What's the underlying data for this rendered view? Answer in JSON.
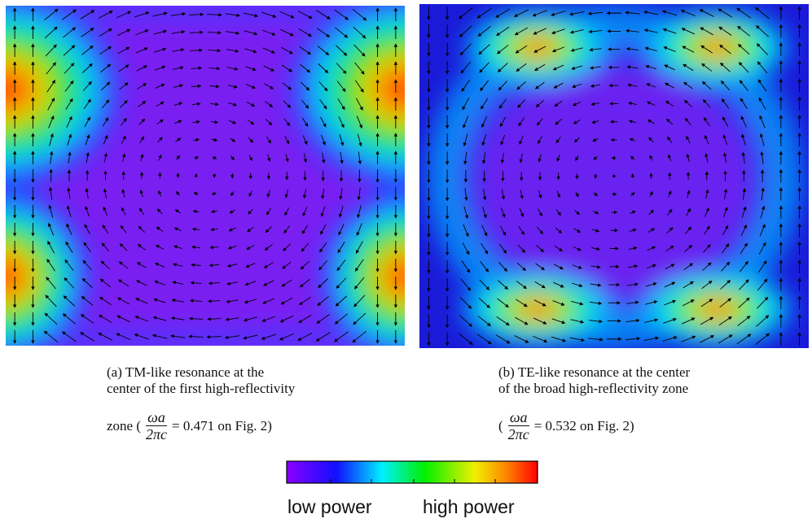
{
  "panels": [
    {
      "caption": [
        "(a) TM-like resonance at the",
        "center of the first high-reflectivity"
      ],
      "formula_prefix": "zone (",
      "numerator": "ωa",
      "denominator": "2πc",
      "formula_suffix": "= 0.471 on Fig. 2)"
    },
    {
      "caption": [
        "(b) TE-like resonance at the center",
        "of the broad high-reflectivity zone"
      ],
      "formula_prefix": "(",
      "numerator": "ωa",
      "denominator": "2πc",
      "formula_suffix": "= 0.532 on Fig. 2)"
    }
  ],
  "colorbar": {
    "low_label": "low power",
    "high_label": "high power"
  }
}
